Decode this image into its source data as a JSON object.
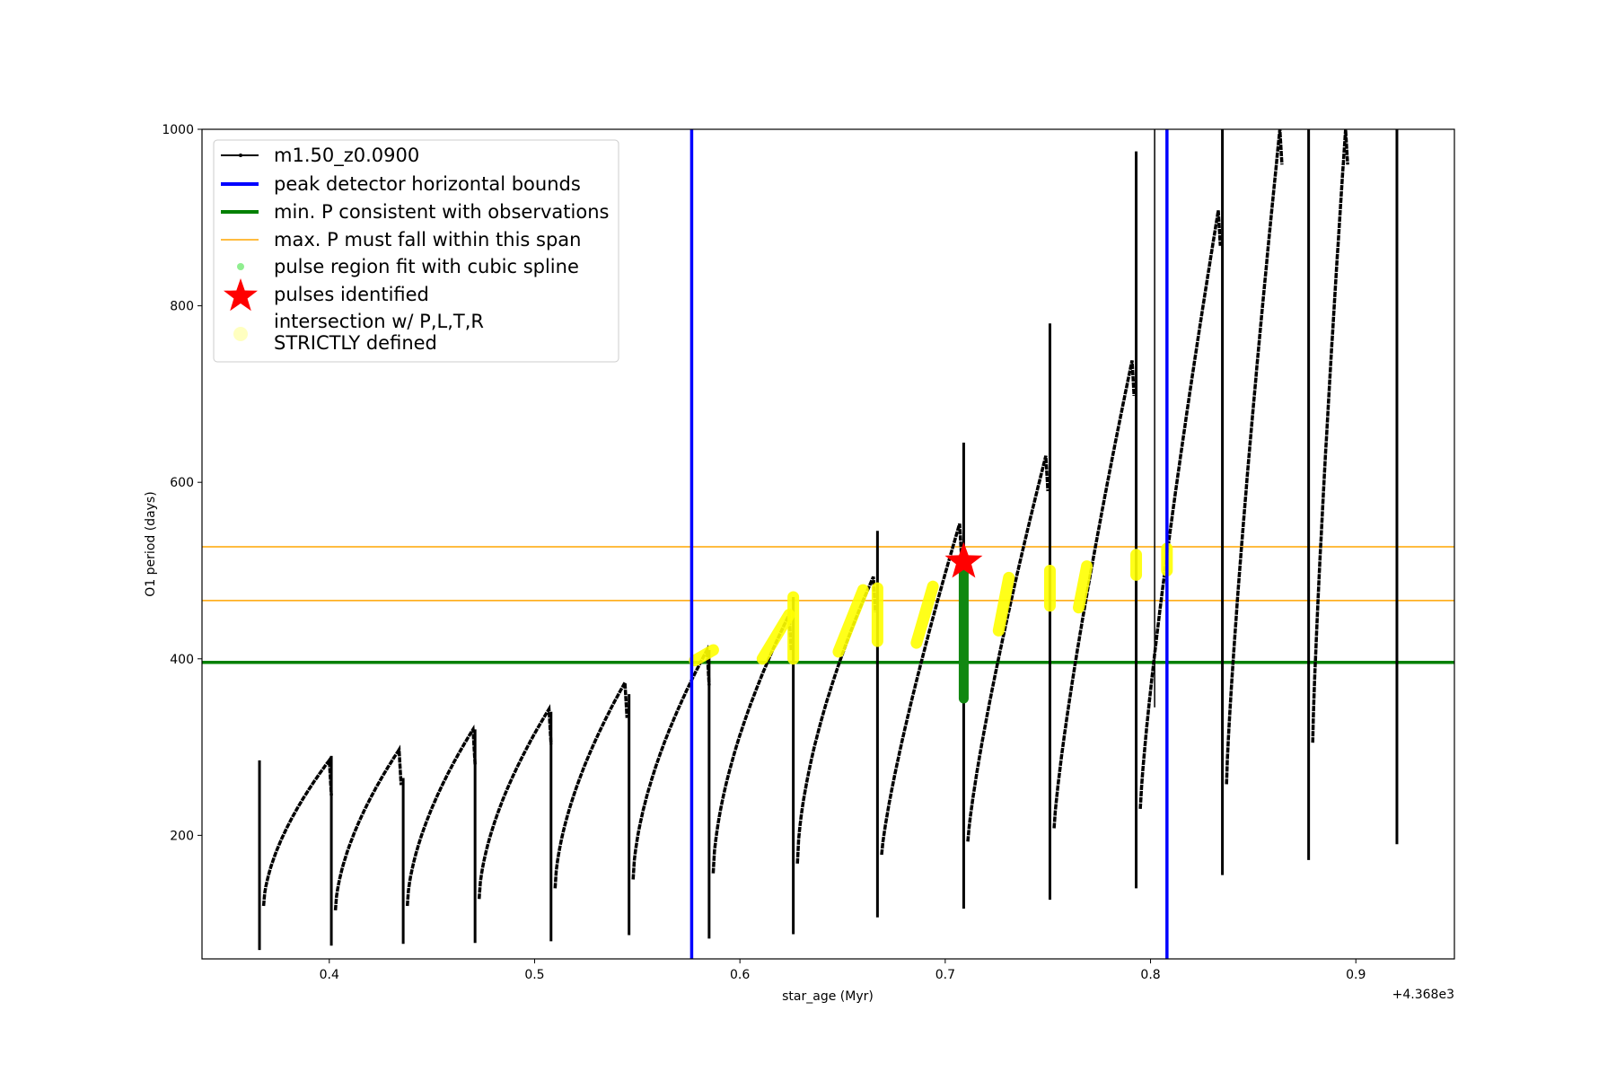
{
  "chart_data": {
    "type": "line",
    "title": "",
    "xlabel": "star_age (Myr)",
    "ylabel": "O1 period (days)",
    "x_offset_label": "+4.368e3",
    "xlim": [
      0.338,
      0.948
    ],
    "ylim": [
      60,
      1000
    ],
    "xticks": [
      0.4,
      0.5,
      0.6,
      0.7,
      0.8,
      0.9
    ],
    "xtick_labels": [
      "0.4",
      "0.5",
      "0.6",
      "0.7",
      "0.8",
      "0.9"
    ],
    "yticks": [
      200,
      400,
      600,
      800,
      1000
    ],
    "ytick_labels": [
      "200",
      "400",
      "600",
      "800",
      "1000"
    ],
    "grid": false,
    "legend_placement": "top-left",
    "legend": [
      {
        "label": "m1.50_z0.0900",
        "kind": "line-marker",
        "color": "#000000"
      },
      {
        "label": "peak detector horizontal bounds",
        "kind": "line-thick",
        "color": "#0000ff"
      },
      {
        "label": "min. P consistent with observations",
        "kind": "line-thick",
        "color": "#008000"
      },
      {
        "label": "max. P must fall within this span",
        "kind": "line-thin",
        "color": "#ffa500"
      },
      {
        "label": "pulse region fit with cubic spline",
        "kind": "dot",
        "color": "#90ee90"
      },
      {
        "label": "pulses identified",
        "kind": "star",
        "color": "#ff0000"
      },
      {
        "label": "intersection w/ P,L,T,R\nSTRICTLY defined",
        "kind": "circle",
        "color": "#ffffc0"
      }
    ],
    "series_cycles": [
      {
        "x_start": 0.366,
        "spike_low": 70,
        "spike_high": 285,
        "trough": 120,
        "peak": 285,
        "x_peak": 0.4
      },
      {
        "x_start": 0.401,
        "spike_low": 75,
        "spike_high": 290,
        "trough": 115,
        "peak": 297,
        "x_peak": 0.434
      },
      {
        "x_start": 0.436,
        "spike_low": 77,
        "spike_high": 265,
        "trough": 120,
        "peak": 320,
        "x_peak": 0.47
      },
      {
        "x_start": 0.471,
        "spike_low": 78,
        "spike_high": 320,
        "trough": 128,
        "peak": 343,
        "x_peak": 0.507
      },
      {
        "x_start": 0.508,
        "spike_low": 80,
        "spike_high": 340,
        "trough": 140,
        "peak": 373,
        "x_peak": 0.544
      },
      {
        "x_start": 0.546,
        "spike_low": 87,
        "spike_high": 360,
        "trough": 150,
        "peak": 410,
        "x_peak": 0.584
      },
      {
        "x_start": 0.585,
        "spike_low": 83,
        "spike_high": 410,
        "trough": 157,
        "peak": 450,
        "x_peak": 0.624
      },
      {
        "x_start": 0.626,
        "spike_low": 88,
        "spike_high": 470,
        "trough": 168,
        "peak": 493,
        "x_peak": 0.665
      },
      {
        "x_start": 0.667,
        "spike_low": 107,
        "spike_high": 545,
        "trough": 178,
        "peak": 553,
        "x_peak": 0.707
      },
      {
        "x_start": 0.709,
        "spike_low": 117,
        "spike_high": 645,
        "trough": 193,
        "peak": 630,
        "x_peak": 0.749
      },
      {
        "x_start": 0.751,
        "spike_low": 127,
        "spike_high": 780,
        "trough": 208,
        "peak": 738,
        "x_peak": 0.791
      },
      {
        "x_start": 0.793,
        "spike_low": 140,
        "spike_high": 975,
        "trough": 230,
        "peak": 908,
        "x_peak": 0.833
      },
      {
        "x_start": 0.835,
        "spike_low": 155,
        "spike_high": 1000,
        "trough": 258,
        "peak": 1000,
        "x_peak": 0.863
      },
      {
        "x_start": 0.877,
        "spike_low": 172,
        "spike_high": 1000,
        "trough": 305,
        "peak": 1000,
        "x_peak": 0.895
      },
      {
        "x_start": 0.92,
        "spike_low": 190,
        "spike_high": 1000,
        "trough": 190,
        "peak": 190,
        "x_peak": 0.92
      }
    ],
    "extra_vertical_line": {
      "x": 0.802,
      "y_range": [
        345,
        1000
      ]
    },
    "peak_detector_bounds_x": [
      0.5765,
      0.808
    ],
    "min_period": 396,
    "max_period_span": [
      466,
      527
    ],
    "pulses_identified": [
      {
        "x": 0.709,
        "y": 510
      }
    ],
    "spline_fit_region": [
      {
        "x": 0.709,
        "y_range": [
          355,
          500
        ]
      }
    ],
    "intersection_segments": [
      {
        "x": [
          0.578,
          0.587
        ],
        "y": [
          398,
          410
        ]
      },
      {
        "x": [
          0.611,
          0.624
        ],
        "y": [
          400,
          450
        ]
      },
      {
        "x": [
          0.626,
          0.626
        ],
        "y": [
          400,
          470
        ]
      },
      {
        "x": [
          0.648,
          0.66
        ],
        "y": [
          408,
          478
        ]
      },
      {
        "x": [
          0.667,
          0.667
        ],
        "y": [
          420,
          480
        ]
      },
      {
        "x": [
          0.686,
          0.694
        ],
        "y": [
          418,
          482
        ]
      },
      {
        "x": [
          0.726,
          0.731
        ],
        "y": [
          432,
          492
        ]
      },
      {
        "x": [
          0.751,
          0.751
        ],
        "y": [
          460,
          500
        ]
      },
      {
        "x": [
          0.765,
          0.769
        ],
        "y": [
          458,
          505
        ]
      },
      {
        "x": [
          0.793,
          0.793
        ],
        "y": [
          495,
          518
        ]
      },
      {
        "x": [
          0.808,
          0.808
        ],
        "y": [
          500,
          525
        ]
      }
    ]
  }
}
